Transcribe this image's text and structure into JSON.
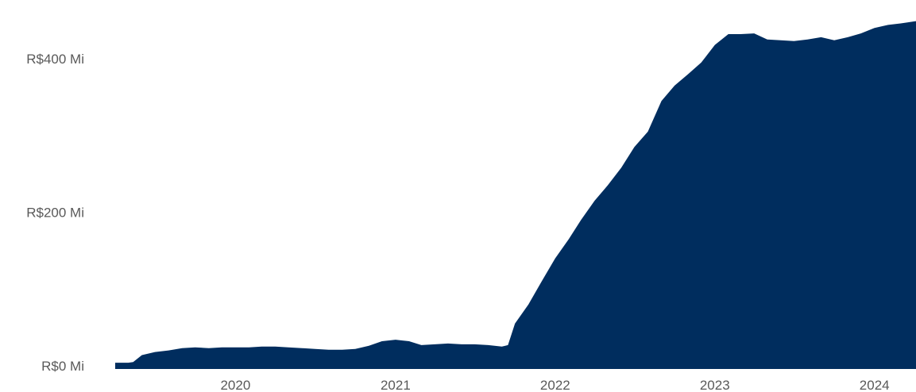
{
  "chart_data": {
    "type": "area",
    "title": "",
    "xlabel": "",
    "ylabel": "",
    "colors": {
      "area": "#002d5e",
      "tick_text": "#595959",
      "background": "#ffffff"
    },
    "grid": false,
    "legend": "none",
    "xlim": [
      "2019-04-01",
      "2024-04-05"
    ],
    "ylim": [
      0,
      450
    ],
    "x_ticks": [
      {
        "date": "2020-01-01",
        "label": "2020"
      },
      {
        "date": "2021-01-01",
        "label": "2021"
      },
      {
        "date": "2022-01-01",
        "label": "2022"
      },
      {
        "date": "2023-01-01",
        "label": "2023"
      },
      {
        "date": "2024-01-01",
        "label": "2024"
      }
    ],
    "y_ticks": [
      {
        "value": 0,
        "label": "R$0 Mi"
      },
      {
        "value": 200,
        "label": "R$200 Mi"
      },
      {
        "value": 400,
        "label": "R$400 Mi"
      }
    ],
    "series": [
      {
        "points": [
          [
            "2019-04-01",
            4
          ],
          [
            "2019-05-01",
            4
          ],
          [
            "2019-05-12",
            5
          ],
          [
            "2019-06-01",
            14
          ],
          [
            "2019-07-01",
            18
          ],
          [
            "2019-08-01",
            20
          ],
          [
            "2019-09-01",
            23
          ],
          [
            "2019-10-01",
            24
          ],
          [
            "2019-11-01",
            23
          ],
          [
            "2019-12-01",
            24
          ],
          [
            "2020-01-01",
            24
          ],
          [
            "2020-02-01",
            24
          ],
          [
            "2020-03-01",
            25
          ],
          [
            "2020-04-01",
            25
          ],
          [
            "2020-05-01",
            24
          ],
          [
            "2020-06-01",
            23
          ],
          [
            "2020-07-01",
            22
          ],
          [
            "2020-08-01",
            21
          ],
          [
            "2020-09-01",
            21
          ],
          [
            "2020-10-01",
            22
          ],
          [
            "2020-11-01",
            26
          ],
          [
            "2020-12-01",
            32
          ],
          [
            "2021-01-01",
            34
          ],
          [
            "2021-02-01",
            32
          ],
          [
            "2021-03-01",
            27
          ],
          [
            "2021-04-01",
            28
          ],
          [
            "2021-05-01",
            29
          ],
          [
            "2021-06-01",
            28
          ],
          [
            "2021-07-01",
            28
          ],
          [
            "2021-08-01",
            27
          ],
          [
            "2021-09-01",
            25
          ],
          [
            "2021-09-15",
            27
          ],
          [
            "2021-10-01",
            55
          ],
          [
            "2021-11-01",
            80
          ],
          [
            "2021-12-01",
            110
          ],
          [
            "2022-01-01",
            140
          ],
          [
            "2022-02-01",
            165
          ],
          [
            "2022-03-01",
            190
          ],
          [
            "2022-04-01",
            215
          ],
          [
            "2022-05-01",
            235
          ],
          [
            "2022-06-01",
            258
          ],
          [
            "2022-07-01",
            285
          ],
          [
            "2022-08-01",
            305
          ],
          [
            "2022-09-01",
            345
          ],
          [
            "2022-10-01",
            365
          ],
          [
            "2022-11-01",
            380
          ],
          [
            "2022-12-01",
            395
          ],
          [
            "2023-01-01",
            418
          ],
          [
            "2023-02-01",
            432
          ],
          [
            "2023-03-01",
            432
          ],
          [
            "2023-04-01",
            433
          ],
          [
            "2023-05-01",
            425
          ],
          [
            "2023-06-01",
            424
          ],
          [
            "2023-07-01",
            423
          ],
          [
            "2023-08-01",
            425
          ],
          [
            "2023-09-01",
            428
          ],
          [
            "2023-10-01",
            424
          ],
          [
            "2023-11-01",
            428
          ],
          [
            "2023-12-01",
            433
          ],
          [
            "2024-01-01",
            440
          ],
          [
            "2024-02-01",
            444
          ],
          [
            "2024-03-01",
            446
          ],
          [
            "2024-04-05",
            449
          ]
        ]
      }
    ]
  }
}
